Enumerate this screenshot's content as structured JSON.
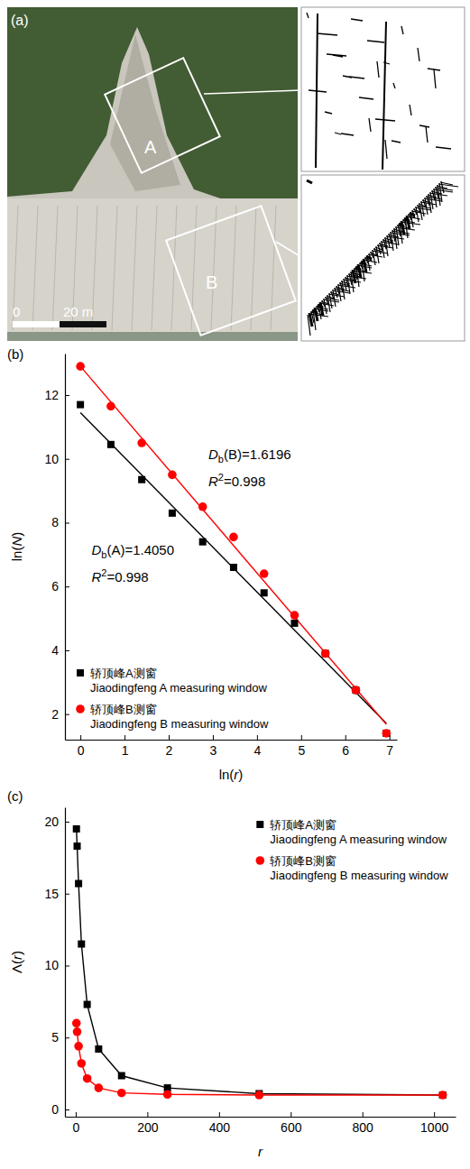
{
  "photo": {
    "panel_label": "(a)",
    "boxes": [
      "A",
      "B"
    ],
    "scale_bar": [
      "0",
      "20 m"
    ]
  },
  "chart_data": [
    {
      "type": "scatter",
      "panel_label": "(b)",
      "xlabel": "ln(r)",
      "ylabel": "ln(N)",
      "x": [
        0,
        0.69,
        1.39,
        2.08,
        2.77,
        3.47,
        4.16,
        4.85,
        5.55,
        6.24,
        6.93
      ],
      "xlim": [
        -0.35,
        7.17
      ],
      "xticks": [
        0,
        1,
        2,
        3,
        4,
        5,
        6,
        7
      ],
      "ylim": [
        1.2,
        13.3
      ],
      "yticks": [
        2,
        4,
        6,
        8,
        10,
        12
      ],
      "series": [
        {
          "name": "轿顶峰A测窗\nJiaodingfeng A measuring window",
          "type": "scatter",
          "marker": "square",
          "color": "#000000",
          "values": [
            11.7,
            10.45,
            9.35,
            8.3,
            7.4,
            6.6,
            5.8,
            4.85,
            3.9,
            2.75,
            1.4
          ]
        },
        {
          "name": "轿顶峰B测窗\nJiaodingfeng B measuring window",
          "type": "scatter",
          "marker": "circle",
          "color": "#ff0000",
          "values": [
            12.9,
            11.65,
            10.5,
            9.5,
            8.5,
            7.55,
            6.4,
            5.1,
            3.9,
            2.75,
            1.4
          ]
        },
        {
          "type": "line",
          "color": "#000000",
          "x": [
            0,
            6.93
          ],
          "values": [
            11.45,
            1.71
          ]
        },
        {
          "type": "line",
          "color": "#ff0000",
          "x": [
            0,
            6.93
          ],
          "values": [
            12.9,
            1.68
          ]
        }
      ],
      "annotations": [
        "Db(B)=1.6196",
        "R2=0.998",
        "Db(A)=1.4050",
        "R2=0.998"
      ],
      "legend": "lower left"
    },
    {
      "type": "line",
      "panel_label": "(c)",
      "xlabel": "r",
      "ylabel": "Λ(r)",
      "x": [
        2,
        4,
        8,
        16,
        32,
        64,
        128,
        256,
        512,
        1024
      ],
      "xlim": [
        -30,
        1060
      ],
      "xticks": [
        0,
        200,
        400,
        600,
        800,
        1000
      ],
      "ylim": [
        -0.5,
        21
      ],
      "yticks": [
        0,
        5,
        10,
        15,
        20
      ],
      "series": [
        {
          "name": "轿顶峰A测窗\nJiaodingfeng A measuring window",
          "type": "line",
          "marker": "square",
          "color": "#000000",
          "values": [
            19.5,
            18.3,
            15.7,
            11.5,
            7.3,
            4.2,
            2.35,
            1.5,
            1.1,
            1.0
          ]
        },
        {
          "name": "轿顶峰B测窗\nJiaodingfeng B measuring window",
          "type": "line",
          "marker": "circle",
          "color": "#ff0000",
          "values": [
            6.0,
            5.4,
            4.4,
            3.2,
            2.15,
            1.5,
            1.15,
            1.05,
            1.0,
            1.0
          ]
        }
      ],
      "legend": "upper right"
    }
  ]
}
